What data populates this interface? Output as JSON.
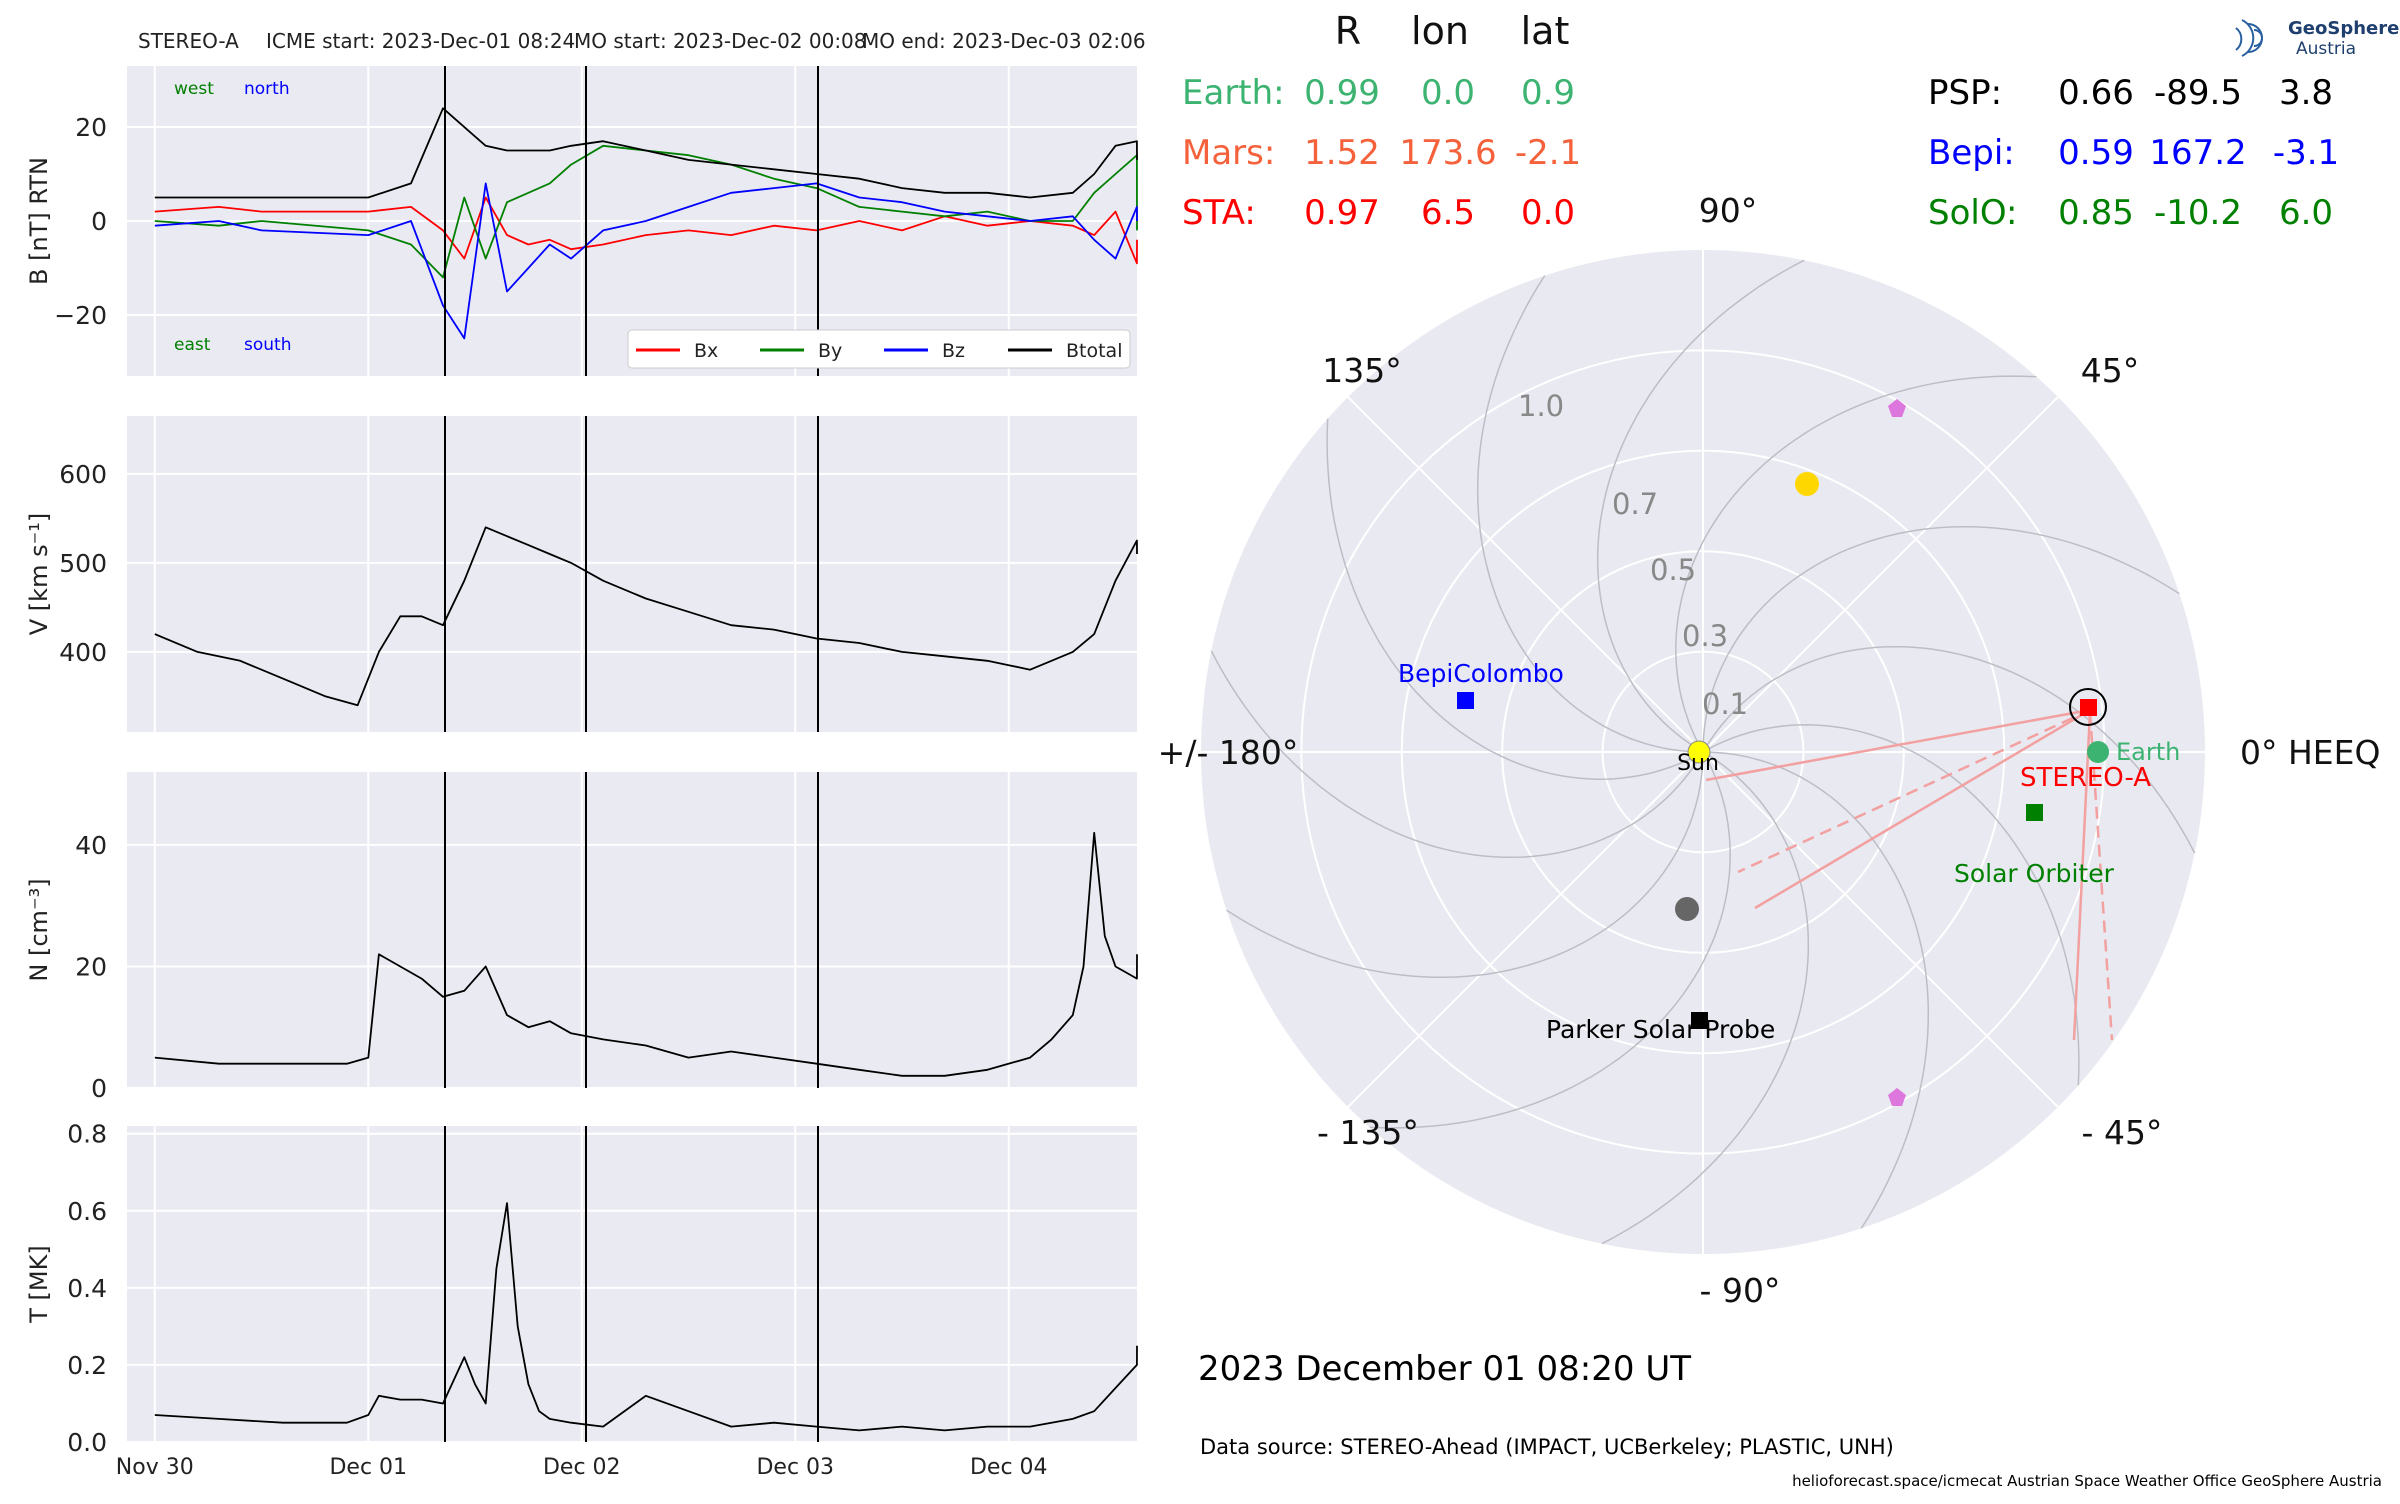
{
  "header": {
    "spacecraft": "STEREO-A",
    "icme_start": "ICME start: 2023-Dec-01 08:24",
    "mo_start": "MO start: 2023-Dec-02 00:08",
    "mo_end": "MO end: 2023-Dec-03 02:06"
  },
  "logo": {
    "line1": "GeoSphere",
    "line2": "Austria"
  },
  "positions": {
    "headers": [
      "R",
      "lon",
      "lat"
    ],
    "left": [
      {
        "label": "Earth:",
        "r": "0.99",
        "lon": "0.0",
        "lat": "0.9",
        "color": "#3cb371"
      },
      {
        "label": "Mars:",
        "r": "1.52",
        "lon": "173.6",
        "lat": "-2.1",
        "color": "#f4613a"
      },
      {
        "label": "STA:",
        "r": "0.97",
        "lon": "6.5",
        "lat": "0.0",
        "color": "#ff0000"
      }
    ],
    "right": [
      {
        "label": "PSP:",
        "r": "0.66",
        "lon": "-89.5",
        "lat": "3.8",
        "color": "#000000"
      },
      {
        "label": "Bepi:",
        "r": "0.59",
        "lon": "167.2",
        "lat": "-3.1",
        "color": "#0000ff"
      },
      {
        "label": "SolO:",
        "r": "0.85",
        "lon": "-10.2",
        "lat": "6.0",
        "color": "#008000"
      }
    ]
  },
  "polar": {
    "angle_labels": {
      "a90": "90°",
      "a45": "45°",
      "a135": "135°",
      "a180": "+/- 180°",
      "a0": "0° HEEQ",
      "am45": "- 45°",
      "am90": "- 90°",
      "am135": "- 135°"
    },
    "radial_labels": [
      "0.1",
      "0.3",
      "0.5",
      "0.7",
      "1.0"
    ],
    "bodies": [
      {
        "name": "Sun",
        "label": "Sun",
        "r": 0.0,
        "lon": 0,
        "color": "#ffff00",
        "marker": "circle"
      },
      {
        "name": "STEREO-A",
        "label": "STEREO-A",
        "r": 0.97,
        "lon": 6.5,
        "color": "#ff0000",
        "marker": "square"
      },
      {
        "name": "Earth",
        "label": "Earth",
        "r": 0.99,
        "lon": 0.0,
        "color": "#3cb371",
        "marker": "circle"
      },
      {
        "name": "Solar Orbiter",
        "label": "Solar Orbiter",
        "r": 0.85,
        "lon": -10.2,
        "color": "#008000",
        "marker": "square"
      },
      {
        "name": "BepiColombo",
        "label": "BepiColombo",
        "r": 0.59,
        "lon": 167.2,
        "color": "#0000ff",
        "marker": "square"
      },
      {
        "name": "Parker Solar Probe",
        "label": "Parker Solar Probe",
        "r": 0.66,
        "lon": -89.5,
        "color": "#000000",
        "marker": "square"
      }
    ]
  },
  "footer": {
    "datetime": "2023 December 01  08:20 UT",
    "source": "Data source: STEREO-Ahead (IMPACT, UCBerkeley; PLASTIC, UNH)",
    "credits": "helioforecast.space/icmecat   Austrian Space Weather Office   GeoSphere Austria"
  },
  "chart_data": [
    {
      "type": "line",
      "panel": "magnetic field",
      "ylabel": "B [nT] RTN",
      "ylim": [
        -33,
        33
      ],
      "yticks": [
        -20,
        0,
        20
      ],
      "x_ticks": [
        "Nov 30",
        "Dec 01",
        "Dec 02",
        "Dec 03",
        "Dec 04"
      ],
      "corner_labels": {
        "west": "west",
        "north": "north",
        "east": "east",
        "south": "south"
      },
      "event_lines": [
        "ICME start",
        "MO start",
        "MO end"
      ],
      "legend": [
        "Bx",
        "By",
        "Bz",
        "Btotal"
      ],
      "series": [
        {
          "name": "Bx",
          "color": "#ff0000",
          "x": [
            0,
            0.3,
            0.5,
            1.0,
            1.2,
            1.35,
            1.45,
            1.55,
            1.65,
            1.75,
            1.85,
            1.95,
            2.1,
            2.3,
            2.5,
            2.7,
            2.9,
            3.1,
            3.3,
            3.5,
            3.7,
            3.9,
            4.1,
            4.3,
            4.4,
            4.5,
            4.6,
            4.72
          ],
          "y": [
            2,
            3,
            2,
            2,
            3,
            -2,
            -8,
            5,
            -3,
            -5,
            -4,
            -6,
            -5,
            -3,
            -2,
            -3,
            -1,
            -2,
            0,
            -2,
            1,
            -1,
            0,
            -1,
            -3,
            2,
            -9,
            -4
          ]
        },
        {
          "name": "By",
          "color": "#008000",
          "x": [
            0,
            0.3,
            0.5,
            1.0,
            1.2,
            1.35,
            1.45,
            1.55,
            1.65,
            1.75,
            1.85,
            1.95,
            2.1,
            2.3,
            2.5,
            2.7,
            2.9,
            3.1,
            3.3,
            3.5,
            3.7,
            3.9,
            4.1,
            4.3,
            4.4,
            4.5,
            4.6,
            4.72
          ],
          "y": [
            0,
            -1,
            0,
            -2,
            -5,
            -12,
            5,
            -8,
            4,
            6,
            8,
            12,
            16,
            15,
            14,
            12,
            9,
            7,
            3,
            2,
            1,
            2,
            0,
            0,
            6,
            10,
            14,
            -2
          ]
        },
        {
          "name": "Bz",
          "color": "#0000ff",
          "x": [
            0,
            0.3,
            0.5,
            1.0,
            1.2,
            1.35,
            1.45,
            1.55,
            1.65,
            1.75,
            1.85,
            1.95,
            2.1,
            2.3,
            2.5,
            2.7,
            2.9,
            3.1,
            3.3,
            3.5,
            3.7,
            3.9,
            4.1,
            4.3,
            4.4,
            4.5,
            4.6,
            4.72
          ],
          "y": [
            -1,
            0,
            -2,
            -3,
            0,
            -18,
            -25,
            8,
            -15,
            -10,
            -5,
            -8,
            -2,
            0,
            3,
            6,
            7,
            8,
            5,
            4,
            2,
            1,
            0,
            1,
            -4,
            -8,
            3,
            0
          ]
        },
        {
          "name": "Btotal",
          "color": "#000000",
          "x": [
            0,
            0.3,
            0.5,
            1.0,
            1.2,
            1.35,
            1.45,
            1.55,
            1.65,
            1.75,
            1.85,
            1.95,
            2.1,
            2.3,
            2.5,
            2.7,
            2.9,
            3.1,
            3.3,
            3.5,
            3.7,
            3.9,
            4.1,
            4.3,
            4.4,
            4.5,
            4.6,
            4.72
          ],
          "y": [
            5,
            5,
            5,
            5,
            8,
            24,
            20,
            16,
            15,
            15,
            15,
            16,
            17,
            15,
            13,
            12,
            11,
            10,
            9,
            7,
            6,
            6,
            5,
            6,
            10,
            16,
            17,
            13
          ]
        }
      ]
    },
    {
      "type": "line",
      "panel": "speed",
      "ylabel": "V [km s⁻¹]",
      "ylim": [
        310,
        665
      ],
      "yticks": [
        400,
        500,
        600
      ],
      "x_ticks": [
        "Nov 30",
        "Dec 01",
        "Dec 02",
        "Dec 03",
        "Dec 04"
      ],
      "series": [
        {
          "name": "V",
          "color": "#000000",
          "x": [
            0,
            0.2,
            0.4,
            0.6,
            0.8,
            0.95,
            1.05,
            1.15,
            1.25,
            1.35,
            1.45,
            1.55,
            1.65,
            1.75,
            1.85,
            1.95,
            2.1,
            2.3,
            2.5,
            2.7,
            2.9,
            3.1,
            3.3,
            3.5,
            3.7,
            3.9,
            4.0,
            4.1,
            4.2,
            4.3,
            4.4,
            4.5,
            4.6,
            4.72
          ],
          "y": [
            420,
            400,
            390,
            370,
            350,
            340,
            400,
            440,
            440,
            430,
            480,
            540,
            530,
            520,
            510,
            500,
            480,
            460,
            445,
            430,
            425,
            415,
            410,
            400,
            395,
            390,
            385,
            380,
            390,
            400,
            420,
            480,
            525,
            510
          ]
        }
      ]
    },
    {
      "type": "line",
      "panel": "density",
      "ylabel": "N [cm⁻³]",
      "ylim": [
        0,
        52
      ],
      "yticks": [
        0,
        20,
        40
      ],
      "x_ticks": [
        "Nov 30",
        "Dec 01",
        "Dec 02",
        "Dec 03",
        "Dec 04"
      ],
      "series": [
        {
          "name": "N",
          "color": "#000000",
          "x": [
            0,
            0.3,
            0.6,
            0.9,
            1.0,
            1.05,
            1.15,
            1.25,
            1.35,
            1.45,
            1.55,
            1.65,
            1.75,
            1.85,
            1.95,
            2.1,
            2.3,
            2.5,
            2.7,
            2.9,
            3.1,
            3.3,
            3.5,
            3.7,
            3.9,
            4.1,
            4.2,
            4.3,
            4.35,
            4.4,
            4.45,
            4.5,
            4.6,
            4.72
          ],
          "y": [
            5,
            4,
            4,
            4,
            5,
            22,
            20,
            18,
            15,
            16,
            20,
            12,
            10,
            11,
            9,
            8,
            7,
            5,
            6,
            5,
            4,
            3,
            2,
            2,
            3,
            5,
            8,
            12,
            20,
            42,
            25,
            20,
            18,
            22
          ]
        }
      ]
    },
    {
      "type": "line",
      "panel": "temperature",
      "ylabel": "T [MK]",
      "ylim": [
        0,
        0.82
      ],
      "yticks": [
        0.0,
        0.2,
        0.4,
        0.6,
        0.8
      ],
      "x_ticks": [
        "Nov 30",
        "Dec 01",
        "Dec 02",
        "Dec 03",
        "Dec 04"
      ],
      "series": [
        {
          "name": "T",
          "color": "#000000",
          "x": [
            0,
            0.3,
            0.6,
            0.9,
            1.0,
            1.05,
            1.15,
            1.25,
            1.35,
            1.45,
            1.5,
            1.55,
            1.6,
            1.65,
            1.7,
            1.75,
            1.8,
            1.85,
            1.95,
            2.1,
            2.3,
            2.5,
            2.7,
            2.9,
            3.1,
            3.3,
            3.5,
            3.7,
            3.9,
            4.1,
            4.2,
            4.3,
            4.4,
            4.5,
            4.6,
            4.72
          ],
          "y": [
            0.07,
            0.06,
            0.05,
            0.05,
            0.07,
            0.12,
            0.11,
            0.11,
            0.1,
            0.22,
            0.15,
            0.1,
            0.45,
            0.62,
            0.3,
            0.15,
            0.08,
            0.06,
            0.05,
            0.04,
            0.12,
            0.08,
            0.04,
            0.05,
            0.04,
            0.03,
            0.04,
            0.03,
            0.04,
            0.04,
            0.05,
            0.06,
            0.08,
            0.14,
            0.2,
            0.25
          ]
        }
      ]
    }
  ]
}
